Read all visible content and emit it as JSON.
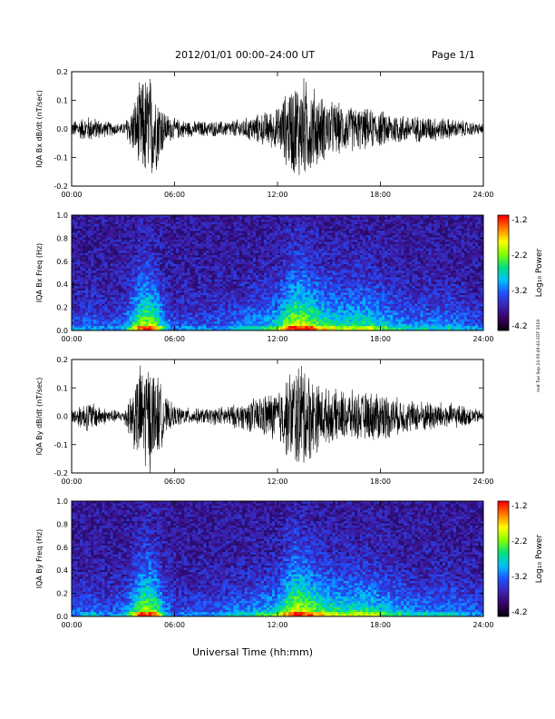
{
  "header": {
    "title": "2012/01/01   00:00–24:00 UT",
    "page": "Page 1/1"
  },
  "footer": {
    "xaxis_title": "Universal Time (hh:mm)"
  },
  "side_stamp": "mat Tue Sep 24 09:49:43 EDT 2019",
  "colors": {
    "trace": "#000000",
    "colormap": [
      "#000000",
      "#3a0060",
      "#3a22b0",
      "#2050ff",
      "#00c0ff",
      "#00e080",
      "#80ff00",
      "#ffff00",
      "#ff8000",
      "#ff0000"
    ]
  },
  "chart_data": [
    {
      "type": "line",
      "ylabel": "IQA Bx dB/dt (nT/sec)",
      "xticks": [
        "00:00",
        "06:00",
        "12:00",
        "18:00",
        "24:00"
      ],
      "xlim": [
        0,
        24
      ],
      "ylim": [
        -0.2,
        0.2
      ],
      "yticks": [
        "0.2",
        "0.1",
        "0.0",
        "-0.1",
        "-0.2"
      ],
      "x": [
        0,
        1,
        2,
        3,
        3.5,
        4,
        4.5,
        5,
        5.5,
        6,
        7,
        8,
        9,
        10,
        11,
        12,
        12.5,
        13,
        13.5,
        14,
        14.5,
        15,
        16,
        17,
        18,
        19,
        20,
        21,
        22,
        23,
        24
      ],
      "envelope": [
        0.03,
        0.05,
        0.03,
        0.02,
        0.08,
        0.18,
        0.22,
        0.15,
        0.06,
        0.04,
        0.03,
        0.03,
        0.03,
        0.04,
        0.06,
        0.08,
        0.14,
        0.19,
        0.2,
        0.17,
        0.13,
        0.11,
        0.09,
        0.08,
        0.07,
        0.06,
        0.05,
        0.05,
        0.04,
        0.03,
        0.02
      ]
    },
    {
      "type": "heatmap",
      "ylabel": "IQA Bx Freq (Hz)",
      "xticks": [
        "00:00",
        "06:00",
        "12:00",
        "18:00",
        "24:00"
      ],
      "xlim": [
        0,
        24
      ],
      "ylim": [
        0,
        1.0
      ],
      "yticks": [
        "1.0",
        "0.8",
        "0.6",
        "0.4",
        "0.2",
        "0.0"
      ],
      "colorbar": {
        "title": "Log₁₀ Power",
        "ticks": [
          "-1.2",
          "-2.2",
          "-3.2",
          "-4.2"
        ],
        "range": [
          -4.2,
          -1.2
        ]
      },
      "x": [
        0,
        1,
        2,
        3,
        3.5,
        4,
        4.5,
        5,
        5.5,
        6,
        7,
        8,
        9,
        10,
        11,
        12,
        12.5,
        13,
        13.5,
        14,
        14.5,
        15,
        16,
        17,
        18,
        19,
        20,
        21,
        22,
        23,
        24
      ],
      "activity": [
        0.2,
        0.25,
        0.2,
        0.25,
        0.45,
        0.7,
        0.75,
        0.6,
        0.3,
        0.2,
        0.2,
        0.2,
        0.25,
        0.3,
        0.35,
        0.45,
        0.65,
        0.8,
        0.75,
        0.7,
        0.6,
        0.55,
        0.5,
        0.55,
        0.45,
        0.35,
        0.3,
        0.3,
        0.3,
        0.25,
        0.2
      ]
    },
    {
      "type": "line",
      "ylabel": "IQA By dB/dt (nT/sec)",
      "xticks": [
        "00:00",
        "06:00",
        "12:00",
        "18:00",
        "24:00"
      ],
      "xlim": [
        0,
        24
      ],
      "ylim": [
        -0.2,
        0.2
      ],
      "yticks": [
        "0.2",
        "0.1",
        "0.0",
        "-0.1",
        "-0.2"
      ],
      "x": [
        0,
        1,
        2,
        3,
        3.5,
        4,
        4.5,
        5,
        5.5,
        6,
        7,
        8,
        9,
        10,
        11,
        12,
        12.5,
        13,
        13.5,
        14,
        14.5,
        15,
        16,
        17,
        18,
        19,
        20,
        21,
        22,
        23,
        24
      ],
      "envelope": [
        0.03,
        0.06,
        0.03,
        0.02,
        0.1,
        0.2,
        0.22,
        0.16,
        0.07,
        0.04,
        0.03,
        0.03,
        0.04,
        0.05,
        0.08,
        0.1,
        0.15,
        0.2,
        0.22,
        0.16,
        0.12,
        0.1,
        0.1,
        0.09,
        0.1,
        0.07,
        0.06,
        0.06,
        0.05,
        0.04,
        0.02
      ]
    },
    {
      "type": "heatmap",
      "ylabel": "IQA By Freq (Hz)",
      "xticks": [
        "00:00",
        "06:00",
        "12:00",
        "18:00",
        "24:00"
      ],
      "xlim": [
        0,
        24
      ],
      "ylim": [
        0,
        1.0
      ],
      "yticks": [
        "1.0",
        "0.8",
        "0.6",
        "0.4",
        "0.2",
        "0.0"
      ],
      "colorbar": {
        "title": "Log₁₀ Power",
        "ticks": [
          "-1.2",
          "-2.2",
          "-3.2",
          "-4.2"
        ],
        "range": [
          -4.2,
          -1.2
        ]
      },
      "x": [
        0,
        1,
        2,
        3,
        3.5,
        4,
        4.5,
        5,
        5.5,
        6,
        7,
        8,
        9,
        10,
        11,
        12,
        12.5,
        13,
        13.5,
        14,
        14.5,
        15,
        16,
        17,
        18,
        19,
        20,
        21,
        22,
        23,
        24
      ],
      "activity": [
        0.2,
        0.25,
        0.2,
        0.25,
        0.45,
        0.7,
        0.75,
        0.6,
        0.3,
        0.2,
        0.2,
        0.2,
        0.25,
        0.3,
        0.35,
        0.45,
        0.65,
        0.8,
        0.75,
        0.7,
        0.6,
        0.55,
        0.5,
        0.55,
        0.45,
        0.35,
        0.3,
        0.3,
        0.3,
        0.25,
        0.2
      ]
    }
  ]
}
